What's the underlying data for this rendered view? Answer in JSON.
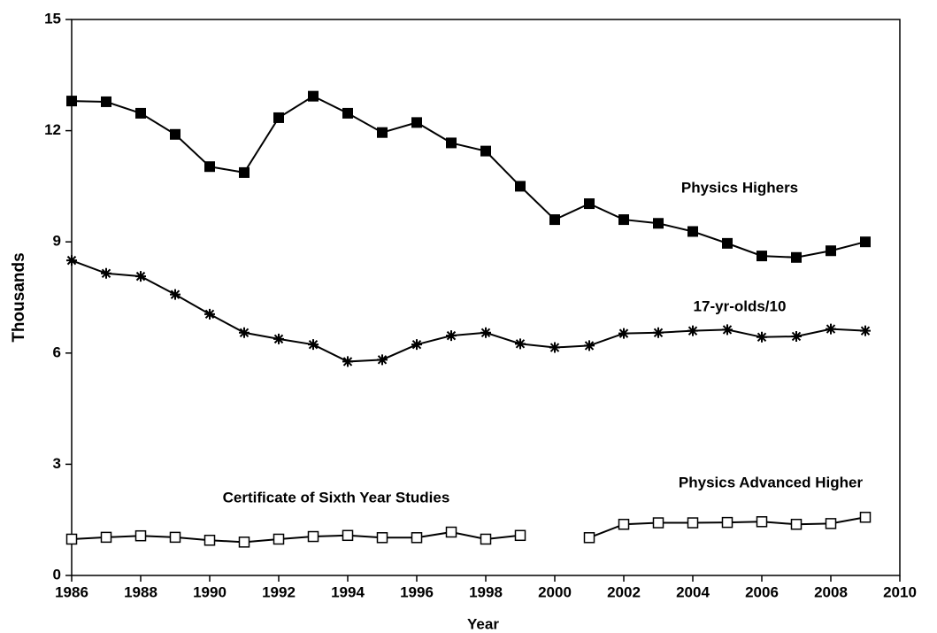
{
  "chart_data": {
    "type": "line",
    "xlabel": "Year",
    "ylabel": "Thousands",
    "xlim": [
      1986,
      2010
    ],
    "xticks": [
      1986,
      1988,
      1990,
      1992,
      1994,
      1996,
      1998,
      2000,
      2002,
      2004,
      2006,
      2008,
      2010
    ],
    "ylim": [
      0,
      15
    ],
    "yticks": [
      0,
      3,
      6,
      9,
      12,
      15
    ],
    "grid": false,
    "series": [
      {
        "name": "Physics Highers",
        "color": "#000000",
        "marker": "filled-square",
        "x": [
          1986,
          1987,
          1988,
          1989,
          1990,
          1991,
          1992,
          1993,
          1994,
          1995,
          1996,
          1997,
          1998,
          1999,
          2000,
          2001,
          2002,
          2003,
          2004,
          2005,
          2006,
          2007,
          2008,
          2009
        ],
        "values": [
          12.8,
          12.78,
          12.47,
          11.9,
          11.03,
          10.87,
          12.35,
          12.93,
          12.47,
          11.95,
          12.22,
          11.67,
          11.45,
          10.5,
          9.6,
          10.03,
          9.6,
          9.5,
          9.28,
          8.96,
          8.62,
          8.58,
          8.76,
          9.0
        ]
      },
      {
        "name": "17-yr-olds/10",
        "color": "#000000",
        "marker": "asterisk",
        "x": [
          1986,
          1987,
          1988,
          1989,
          1990,
          1991,
          1992,
          1993,
          1994,
          1995,
          1996,
          1997,
          1998,
          1999,
          2000,
          2001,
          2002,
          2003,
          2004,
          2005,
          2006,
          2007,
          2008,
          2009
        ],
        "values": [
          8.5,
          8.15,
          8.07,
          7.58,
          7.05,
          6.55,
          6.38,
          6.23,
          5.77,
          5.82,
          6.23,
          6.47,
          6.55,
          6.25,
          6.15,
          6.2,
          6.53,
          6.55,
          6.6,
          6.63,
          6.43,
          6.45,
          6.65,
          6.6
        ]
      },
      {
        "name": "Certificate of Sixth Year Studies",
        "color": "#000000",
        "marker": "open-square",
        "x": [
          1986,
          1987,
          1988,
          1989,
          1990,
          1991,
          1992,
          1993,
          1994,
          1995,
          1996,
          1997,
          1998,
          1999
        ],
        "values": [
          0.98,
          1.03,
          1.07,
          1.03,
          0.95,
          0.9,
          0.98,
          1.05,
          1.08,
          1.02,
          1.02,
          1.17,
          0.98,
          1.08
        ]
      },
      {
        "name": "Physics Advanced Higher",
        "color": "#000000",
        "marker": "open-square",
        "x": [
          2001,
          2002,
          2003,
          2004,
          2005,
          2006,
          2007,
          2008,
          2009
        ],
        "values": [
          1.02,
          1.38,
          1.42,
          1.42,
          1.43,
          1.45,
          1.38,
          1.4,
          1.57
        ]
      }
    ]
  }
}
